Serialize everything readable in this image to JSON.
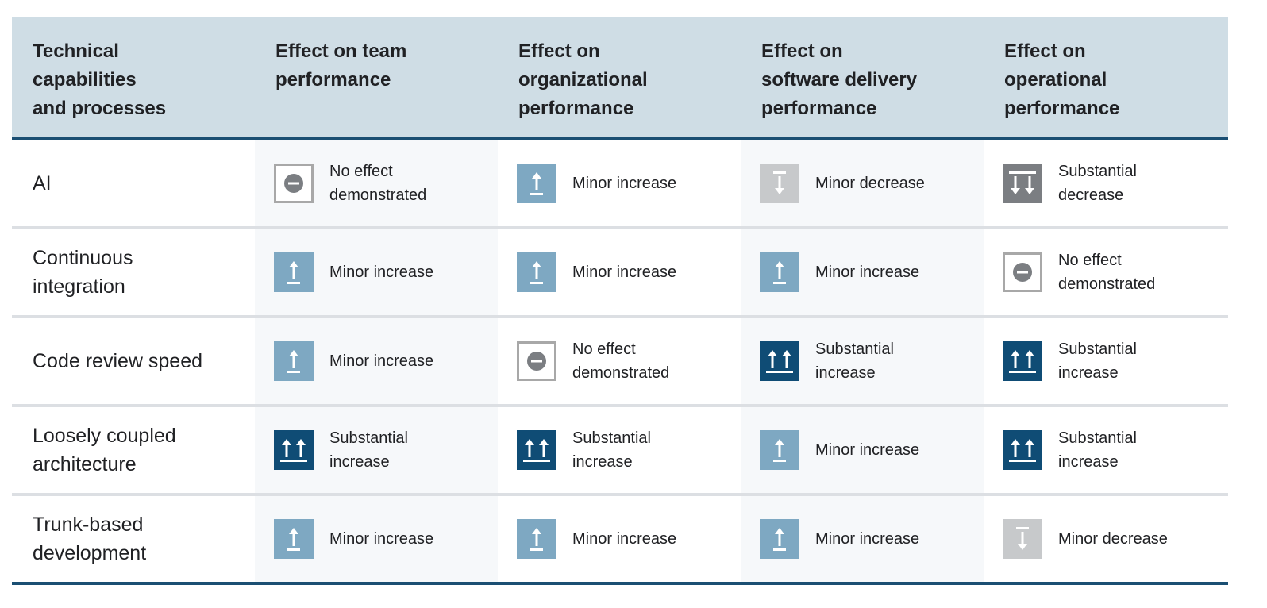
{
  "header": {
    "col0": "Technical\ncapabilities\nand processes",
    "col1": "Effect on team\nperformance",
    "col2": "Effect on\norganizational\nperformance",
    "col3": "Effect on\nsoftware delivery\nperformance",
    "col4": "Effect on\noperational\nperformance"
  },
  "legend_colors": {
    "substantial_increase": "#0f4c75",
    "minor_increase": "#7ea8c2",
    "no_effect": "#a8a8a8",
    "minor_decrease": "#c7c9cb",
    "substantial_decrease": "#7b7e82"
  },
  "rows": [
    {
      "label": "AI",
      "cells": [
        {
          "effect": "no-effect",
          "icon": "no-effect-icon",
          "text": "No effect\ndemonstrated"
        },
        {
          "effect": "minor-increase",
          "icon": "minor-increase-icon",
          "text": "Minor increase"
        },
        {
          "effect": "minor-decrease",
          "icon": "minor-decrease-icon",
          "text": "Minor decrease"
        },
        {
          "effect": "substantial-decrease",
          "icon": "substantial-decrease-icon",
          "text": "Substantial\ndecrease"
        }
      ]
    },
    {
      "label": "Continuous\nintegration",
      "cells": [
        {
          "effect": "minor-increase",
          "icon": "minor-increase-icon",
          "text": "Minor increase"
        },
        {
          "effect": "minor-increase",
          "icon": "minor-increase-icon",
          "text": "Minor increase"
        },
        {
          "effect": "minor-increase",
          "icon": "minor-increase-icon",
          "text": "Minor increase"
        },
        {
          "effect": "no-effect",
          "icon": "no-effect-icon",
          "text": "No effect\ndemonstrated"
        }
      ]
    },
    {
      "label": "Code review speed",
      "cells": [
        {
          "effect": "minor-increase",
          "icon": "minor-increase-icon",
          "text": "Minor increase"
        },
        {
          "effect": "no-effect",
          "icon": "no-effect-icon",
          "text": "No effect\ndemonstrated"
        },
        {
          "effect": "substantial-increase",
          "icon": "substantial-increase-icon",
          "text": "Substantial\nincrease"
        },
        {
          "effect": "substantial-increase",
          "icon": "substantial-increase-icon",
          "text": "Substantial\nincrease"
        }
      ]
    },
    {
      "label": "Loosely coupled\narchitecture",
      "cells": [
        {
          "effect": "substantial-increase",
          "icon": "substantial-increase-icon",
          "text": "Substantial\nincrease"
        },
        {
          "effect": "substantial-increase",
          "icon": "substantial-increase-icon",
          "text": "Substantial\nincrease"
        },
        {
          "effect": "minor-increase",
          "icon": "minor-increase-icon",
          "text": "Minor increase"
        },
        {
          "effect": "substantial-increase",
          "icon": "substantial-increase-icon",
          "text": "Substantial\nincrease"
        }
      ]
    },
    {
      "label": "Trunk-based\ndevelopment",
      "cells": [
        {
          "effect": "minor-increase",
          "icon": "minor-increase-icon",
          "text": "Minor increase"
        },
        {
          "effect": "minor-increase",
          "icon": "minor-increase-icon",
          "text": "Minor increase"
        },
        {
          "effect": "minor-increase",
          "icon": "minor-increase-icon",
          "text": "Minor increase"
        },
        {
          "effect": "minor-decrease",
          "icon": "minor-decrease-icon",
          "text": "Minor decrease"
        }
      ]
    }
  ]
}
